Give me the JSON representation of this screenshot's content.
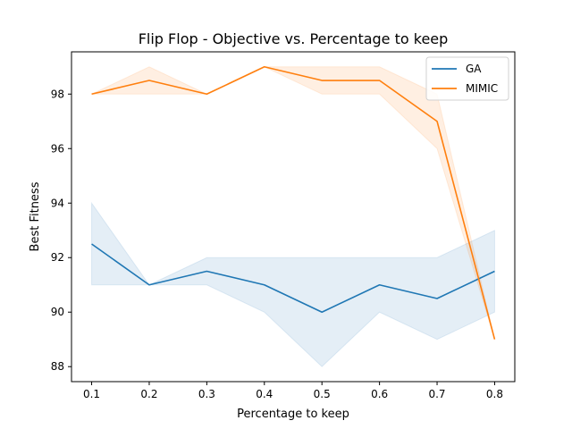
{
  "chart_data": {
    "type": "line",
    "title": "Flip Flop - Objective vs. Percentage to keep",
    "xlabel": "Percentage to keep",
    "ylabel": "Best Fitness",
    "x": [
      0.1,
      0.2,
      0.3,
      0.4,
      0.5,
      0.6,
      0.7,
      0.8
    ],
    "x_ticks": [
      "0.1",
      "0.2",
      "0.3",
      "0.4",
      "0.5",
      "0.6",
      "0.7",
      "0.8"
    ],
    "y_ticks": [
      "88",
      "90",
      "92",
      "94",
      "96",
      "98"
    ],
    "y_tick_values": [
      88,
      90,
      92,
      94,
      96,
      98
    ],
    "xlim": [
      0.065,
      0.835
    ],
    "ylim": [
      87.45,
      99.55
    ],
    "grid": false,
    "legend_position": "upper right",
    "series": [
      {
        "name": "GA",
        "color": "#1f77b4",
        "values": [
          92.5,
          91.0,
          91.5,
          91.0,
          90.0,
          91.0,
          90.5,
          91.5
        ],
        "band_low": [
          91.0,
          91.0,
          91.0,
          90.0,
          88.0,
          90.0,
          89.0,
          90.0
        ],
        "band_high": [
          94.0,
          91.0,
          92.0,
          92.0,
          92.0,
          92.0,
          92.0,
          93.0
        ]
      },
      {
        "name": "MIMIC",
        "color": "#ff7f0e",
        "values": [
          98.0,
          98.5,
          98.0,
          99.0,
          98.5,
          98.5,
          97.0,
          89.0
        ],
        "band_low": [
          98.0,
          98.0,
          98.0,
          99.0,
          98.0,
          98.0,
          96.0,
          89.0
        ],
        "band_high": [
          98.0,
          99.0,
          98.0,
          99.0,
          99.0,
          99.0,
          98.0,
          89.0
        ]
      }
    ]
  }
}
